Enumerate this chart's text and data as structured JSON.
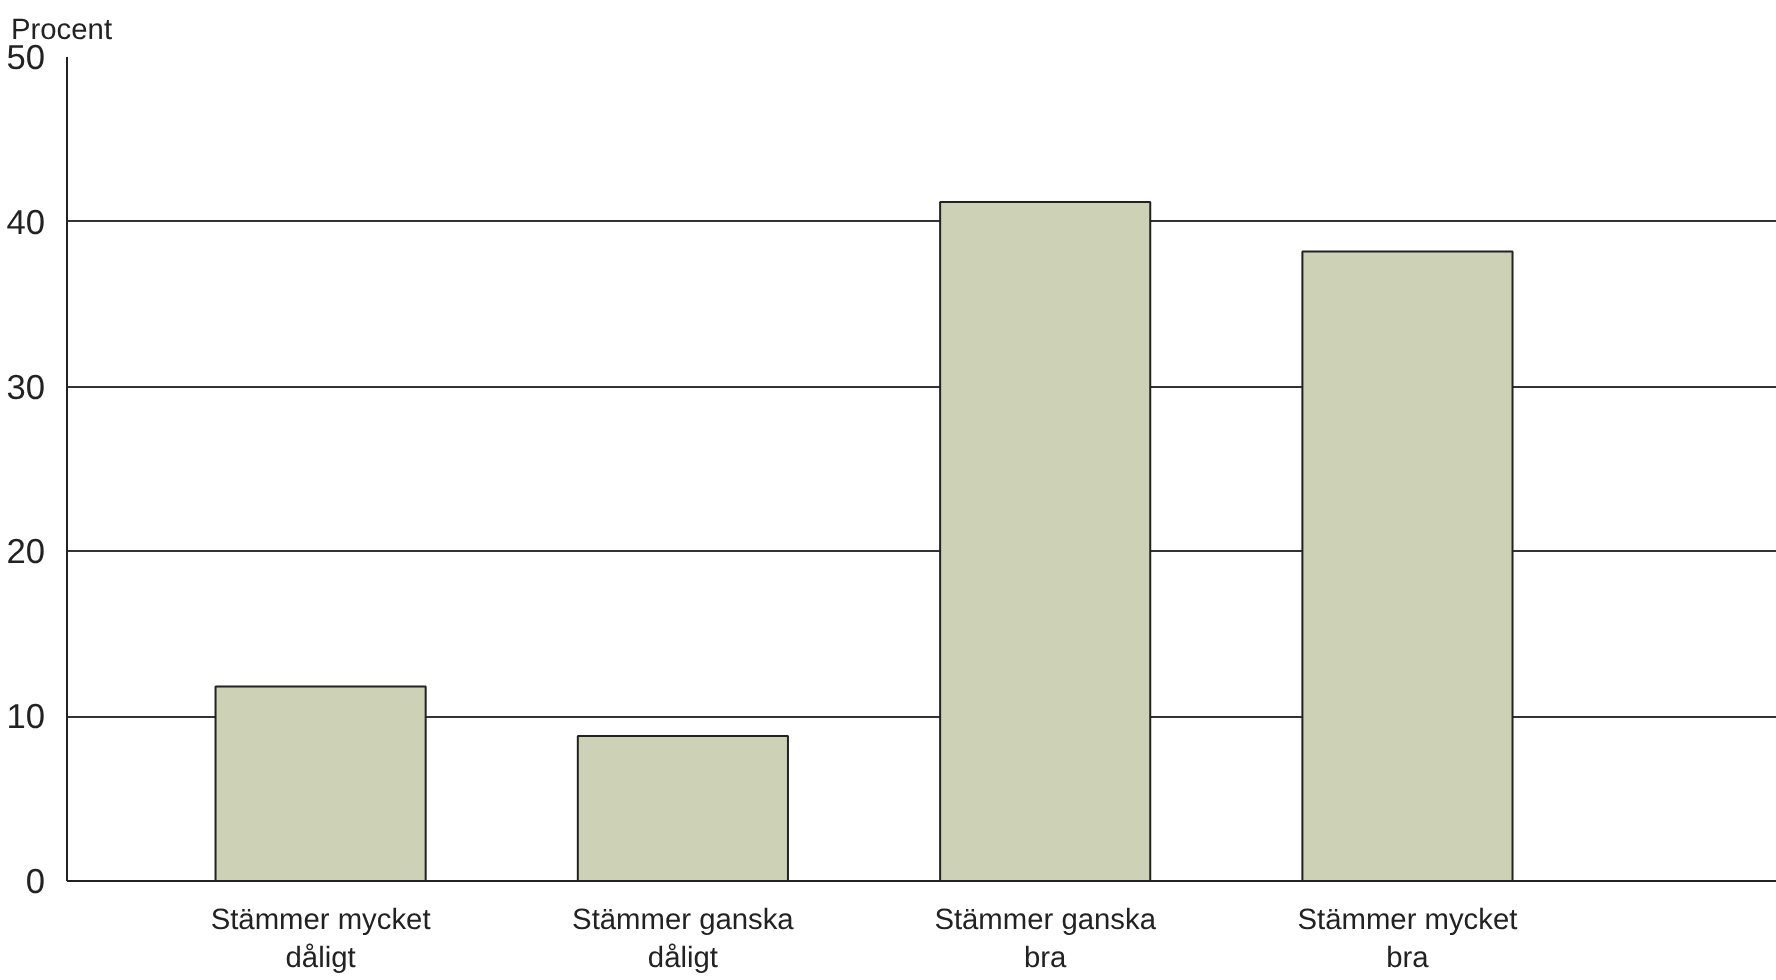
{
  "chart_data": {
    "type": "bar",
    "ylabel": "Procent",
    "categories": [
      "Stämmer mycket dåligt",
      "Stämmer ganska dåligt",
      "Stämmer ganska bra",
      "Stämmer mycket bra"
    ],
    "values": [
      11.8,
      8.8,
      41.2,
      38.2
    ],
    "color": "#cdd1b6",
    "ylim": [
      0,
      50
    ],
    "yticks": [
      0,
      10,
      20,
      30,
      40,
      50
    ],
    "grid": "y"
  }
}
